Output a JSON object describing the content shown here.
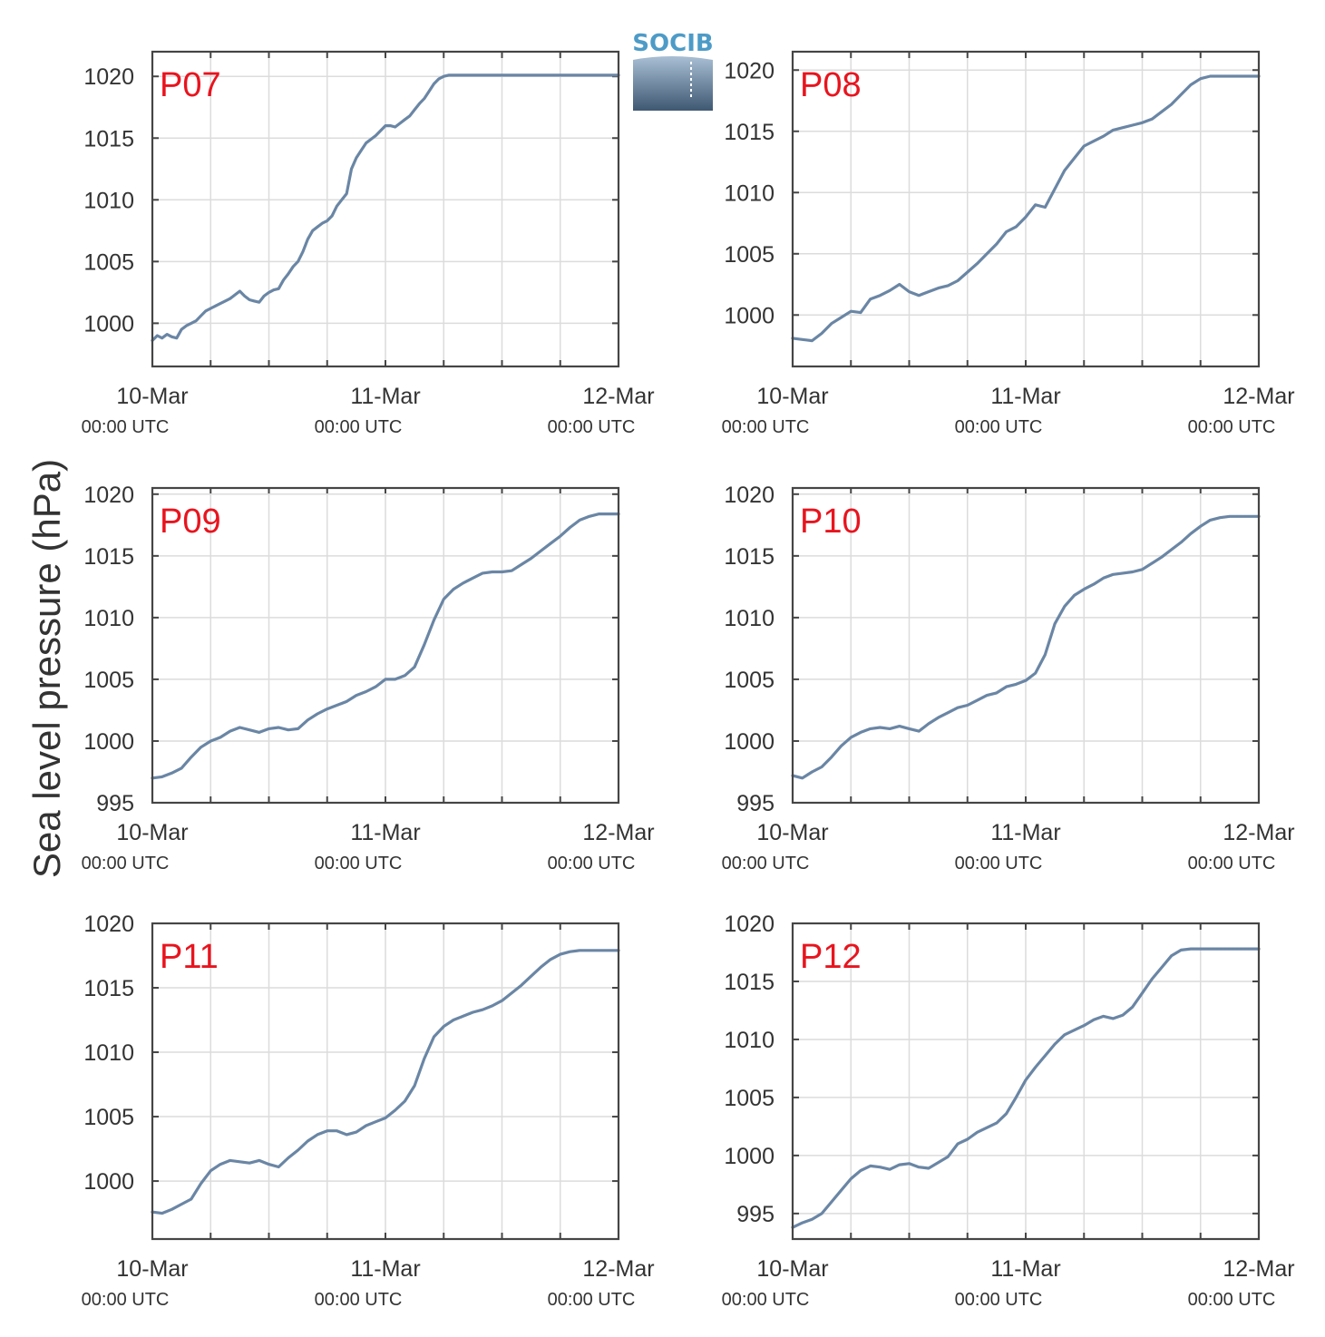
{
  "ylabel": "Sea level pressure (hPa)",
  "logo": {
    "text": "SOCIB"
  },
  "colors": {
    "line": "#6a86a5",
    "panel_label": "#e8141e",
    "grid": "#dcdcdc",
    "frame": "#454545",
    "logo_text": "#4d9bc7"
  },
  "chart_data": [
    {
      "type": "line",
      "title": "P07",
      "x_ticks": [
        {
          "date": "10-Mar",
          "time": "00:00 UTC"
        },
        {
          "date": "11-Mar",
          "time": "00:00 UTC"
        },
        {
          "date": "12-Mar",
          "time": "00:00 UTC"
        }
      ],
      "xlim": [
        0,
        48
      ],
      "ylim": [
        996.5,
        1022
      ],
      "yticks": [
        1000,
        1005,
        1010,
        1015,
        1020
      ],
      "grid": true,
      "series": [
        {
          "x": [
            0,
            0.5,
            1,
            1.5,
            2,
            2.5,
            3,
            3.5,
            4,
            4.5,
            5,
            5.5,
            6,
            6.5,
            7,
            7.5,
            8,
            8.5,
            9,
            9.5,
            10,
            10.5,
            11,
            11.5,
            12,
            12.5,
            13,
            13.5,
            14,
            14.5,
            15,
            15.5,
            16,
            16.5,
            17,
            17.5,
            18,
            18.5,
            19,
            19.5,
            20,
            20.5,
            21,
            21.5,
            22,
            22.5,
            23,
            23.5,
            24,
            24.5,
            25,
            25.5,
            26,
            26.5,
            27,
            27.5,
            28,
            28.5,
            29,
            29.5,
            30,
            30.5,
            31,
            31.5,
            32,
            32.5,
            33,
            33.5,
            34,
            34.5,
            35,
            35.5,
            36,
            36.5,
            37,
            37.5,
            38,
            38.5,
            39,
            39.5,
            40,
            40.5,
            41,
            41.5,
            42,
            42.5,
            43,
            43.5,
            44,
            44.5,
            45,
            45.5,
            46,
            46.5,
            47,
            47.5,
            48
          ],
          "y": [
            998.6,
            999.0,
            998.8,
            999.1,
            998.9,
            998.8,
            999.5,
            999.8,
            1000.0,
            1000.2,
            1000.6,
            1001.0,
            1001.2,
            1001.4,
            1001.6,
            1001.8,
            1002.0,
            1002.3,
            1002.6,
            1002.2,
            1001.9,
            1001.8,
            1001.7,
            1002.2,
            1002.5,
            1002.7,
            1002.8,
            1003.5,
            1004.0,
            1004.6,
            1005.0,
            1005.8,
            1006.8,
            1007.5,
            1007.8,
            1008.1,
            1008.3,
            1008.7,
            1009.5,
            1010.0,
            1010.5,
            1012.5,
            1013.4,
            1014.0,
            1014.6,
            1014.9,
            1015.2,
            1015.6,
            1016.0,
            1016.0,
            1015.9,
            1016.2,
            1016.5,
            1016.8,
            1017.3,
            1017.8,
            1018.2,
            1018.8,
            1019.4,
            1019.8,
            1020.0,
            1020.1,
            1020.1,
            1020.1,
            1020.1,
            1020.1,
            1020.1,
            1020.1,
            1020.1,
            1020.1,
            1020.1,
            1020.1,
            1020.1,
            1020.1,
            1020.1,
            1020.1,
            1020.1,
            1020.1,
            1020.1,
            1020.1,
            1020.1,
            1020.1,
            1020.1,
            1020.1,
            1020.1,
            1020.1,
            1020.1,
            1020.1,
            1020.1,
            1020.1,
            1020.1,
            1020.1,
            1020.1,
            1020.1,
            1020.1,
            1020.1,
            1020.1
          ]
        }
      ]
    },
    {
      "type": "line",
      "title": "P08",
      "x_ticks": [
        {
          "date": "10-Mar",
          "time": "00:00 UTC"
        },
        {
          "date": "11-Mar",
          "time": "00:00 UTC"
        },
        {
          "date": "12-Mar",
          "time": "00:00 UTC"
        }
      ],
      "xlim": [
        0,
        48
      ],
      "ylim": [
        995.8,
        1021.5
      ],
      "yticks": [
        1000,
        1005,
        1010,
        1015,
        1020
      ],
      "grid": true,
      "series": [
        {
          "x": [
            0,
            1,
            2,
            3,
            4,
            5,
            6,
            7,
            8,
            9,
            10,
            11,
            12,
            13,
            14,
            15,
            16,
            17,
            18,
            19,
            20,
            21,
            22,
            23,
            24,
            25,
            26,
            27,
            28,
            29,
            30,
            31,
            32,
            33,
            34,
            35,
            36,
            37,
            38,
            39,
            40,
            41,
            42,
            43,
            44,
            45,
            46,
            47,
            48
          ],
          "y": [
            998.1,
            998.0,
            997.9,
            998.5,
            999.3,
            999.8,
            1000.3,
            1000.2,
            1001.3,
            1001.6,
            1002.0,
            1002.5,
            1001.9,
            1001.6,
            1001.9,
            1002.2,
            1002.4,
            1002.8,
            1003.5,
            1004.2,
            1005.0,
            1005.8,
            1006.8,
            1007.2,
            1008.0,
            1009.0,
            1008.8,
            1010.3,
            1011.8,
            1012.8,
            1013.8,
            1014.2,
            1014.6,
            1015.1,
            1015.3,
            1015.5,
            1015.7,
            1016.0,
            1016.6,
            1017.2,
            1018.0,
            1018.8,
            1019.3,
            1019.5,
            1019.5,
            1019.5,
            1019.5,
            1019.5,
            1019.5
          ]
        }
      ]
    },
    {
      "type": "line",
      "title": "P09",
      "x_ticks": [
        {
          "date": "10-Mar",
          "time": "00:00 UTC"
        },
        {
          "date": "11-Mar",
          "time": "00:00 UTC"
        },
        {
          "date": "12-Mar",
          "time": "00:00 UTC"
        }
      ],
      "xlim": [
        0,
        48
      ],
      "ylim": [
        995,
        1020.5
      ],
      "yticks": [
        995,
        1000,
        1005,
        1010,
        1015,
        1020
      ],
      "grid": true,
      "series": [
        {
          "x": [
            0,
            1,
            2,
            3,
            4,
            5,
            6,
            7,
            8,
            9,
            10,
            11,
            12,
            13,
            14,
            15,
            16,
            17,
            18,
            19,
            20,
            21,
            22,
            23,
            24,
            25,
            26,
            27,
            28,
            29,
            30,
            31,
            32,
            33,
            34,
            35,
            36,
            37,
            38,
            39,
            40,
            41,
            42,
            43,
            44,
            45,
            46,
            47,
            48
          ],
          "y": [
            997.0,
            997.1,
            997.4,
            997.8,
            998.7,
            999.5,
            1000.0,
            1000.3,
            1000.8,
            1001.1,
            1000.9,
            1000.7,
            1001.0,
            1001.1,
            1000.9,
            1001.0,
            1001.7,
            1002.2,
            1002.6,
            1002.9,
            1003.2,
            1003.7,
            1004.0,
            1004.4,
            1005.0,
            1005.0,
            1005.3,
            1006.0,
            1007.8,
            1009.8,
            1011.5,
            1012.3,
            1012.8,
            1013.2,
            1013.6,
            1013.7,
            1013.7,
            1013.8,
            1014.3,
            1014.8,
            1015.4,
            1016.0,
            1016.6,
            1017.3,
            1017.9,
            1018.2,
            1018.4,
            1018.4,
            1018.4
          ]
        }
      ]
    },
    {
      "type": "line",
      "title": "P10",
      "x_ticks": [
        {
          "date": "10-Mar",
          "time": "00:00 UTC"
        },
        {
          "date": "11-Mar",
          "time": "00:00 UTC"
        },
        {
          "date": "12-Mar",
          "time": "00:00 UTC"
        }
      ],
      "xlim": [
        0,
        48
      ],
      "ylim": [
        995,
        1020.5
      ],
      "yticks": [
        995,
        1000,
        1005,
        1010,
        1015,
        1020
      ],
      "grid": true,
      "series": [
        {
          "x": [
            0,
            1,
            2,
            3,
            4,
            5,
            6,
            7,
            8,
            9,
            10,
            11,
            12,
            13,
            14,
            15,
            16,
            17,
            18,
            19,
            20,
            21,
            22,
            23,
            24,
            25,
            26,
            27,
            28,
            29,
            30,
            31,
            32,
            33,
            34,
            35,
            36,
            37,
            38,
            39,
            40,
            41,
            42,
            43,
            44,
            45,
            46,
            47,
            48
          ],
          "y": [
            997.2,
            997.0,
            997.5,
            997.9,
            998.7,
            999.6,
            1000.3,
            1000.7,
            1001.0,
            1001.1,
            1001.0,
            1001.2,
            1001.0,
            1000.8,
            1001.4,
            1001.9,
            1002.3,
            1002.7,
            1002.9,
            1003.3,
            1003.7,
            1003.9,
            1004.4,
            1004.6,
            1004.9,
            1005.5,
            1007.0,
            1009.5,
            1010.9,
            1011.8,
            1012.3,
            1012.7,
            1013.2,
            1013.5,
            1013.6,
            1013.7,
            1013.9,
            1014.4,
            1014.9,
            1015.5,
            1016.1,
            1016.8,
            1017.4,
            1017.9,
            1018.1,
            1018.2,
            1018.2,
            1018.2,
            1018.2
          ]
        }
      ]
    },
    {
      "type": "line",
      "title": "P11",
      "x_ticks": [
        {
          "date": "10-Mar",
          "time": "00:00 UTC"
        },
        {
          "date": "11-Mar",
          "time": "00:00 UTC"
        },
        {
          "date": "12-Mar",
          "time": "00:00 UTC"
        }
      ],
      "xlim": [
        0,
        48
      ],
      "ylim": [
        995.5,
        1020
      ],
      "yticks": [
        1000,
        1005,
        1010,
        1015,
        1020
      ],
      "grid": true,
      "series": [
        {
          "x": [
            0,
            1,
            2,
            3,
            4,
            5,
            6,
            7,
            8,
            9,
            10,
            11,
            12,
            13,
            14,
            15,
            16,
            17,
            18,
            19,
            20,
            21,
            22,
            23,
            24,
            25,
            26,
            27,
            28,
            29,
            30,
            31,
            32,
            33,
            34,
            35,
            36,
            37,
            38,
            39,
            40,
            41,
            42,
            43,
            44,
            45,
            46,
            47,
            48
          ],
          "y": [
            997.6,
            997.5,
            997.8,
            998.2,
            998.6,
            999.8,
            1000.8,
            1001.3,
            1001.6,
            1001.5,
            1001.4,
            1001.6,
            1001.3,
            1001.1,
            1001.8,
            1002.4,
            1003.1,
            1003.6,
            1003.9,
            1003.9,
            1003.6,
            1003.8,
            1004.3,
            1004.6,
            1004.9,
            1005.5,
            1006.2,
            1007.4,
            1009.5,
            1011.2,
            1012.0,
            1012.5,
            1012.8,
            1013.1,
            1013.3,
            1013.6,
            1014.0,
            1014.6,
            1015.2,
            1015.9,
            1016.6,
            1017.2,
            1017.6,
            1017.8,
            1017.9,
            1017.9,
            1017.9,
            1017.9,
            1017.9
          ]
        }
      ]
    },
    {
      "type": "line",
      "title": "P12",
      "x_ticks": [
        {
          "date": "10-Mar",
          "time": "00:00 UTC"
        },
        {
          "date": "11-Mar",
          "time": "00:00 UTC"
        },
        {
          "date": "12-Mar",
          "time": "00:00 UTC"
        }
      ],
      "xlim": [
        0,
        48
      ],
      "ylim": [
        992.8,
        1020
      ],
      "yticks": [
        995,
        1000,
        1005,
        1010,
        1015,
        1020
      ],
      "grid": true,
      "series": [
        {
          "x": [
            0,
            1,
            2,
            3,
            4,
            5,
            6,
            7,
            8,
            9,
            10,
            11,
            12,
            13,
            14,
            15,
            16,
            17,
            18,
            19,
            20,
            21,
            22,
            23,
            24,
            25,
            26,
            27,
            28,
            29,
            30,
            31,
            32,
            33,
            34,
            35,
            36,
            37,
            38,
            39,
            40,
            41,
            42,
            43,
            44,
            45,
            46,
            47,
            48
          ],
          "y": [
            993.8,
            994.2,
            994.5,
            995.0,
            996.0,
            997.0,
            998.0,
            998.7,
            999.1,
            999.0,
            998.8,
            999.2,
            999.3,
            999.0,
            998.9,
            999.4,
            999.9,
            1001.0,
            1001.4,
            1002.0,
            1002.4,
            1002.8,
            1003.6,
            1005.0,
            1006.5,
            1007.6,
            1008.6,
            1009.6,
            1010.4,
            1010.8,
            1011.2,
            1011.7,
            1012.0,
            1011.8,
            1012.1,
            1012.8,
            1014.0,
            1015.2,
            1016.2,
            1017.2,
            1017.7,
            1017.8,
            1017.8,
            1017.8,
            1017.8,
            1017.8,
            1017.8,
            1017.8,
            1017.8
          ]
        }
      ]
    }
  ]
}
